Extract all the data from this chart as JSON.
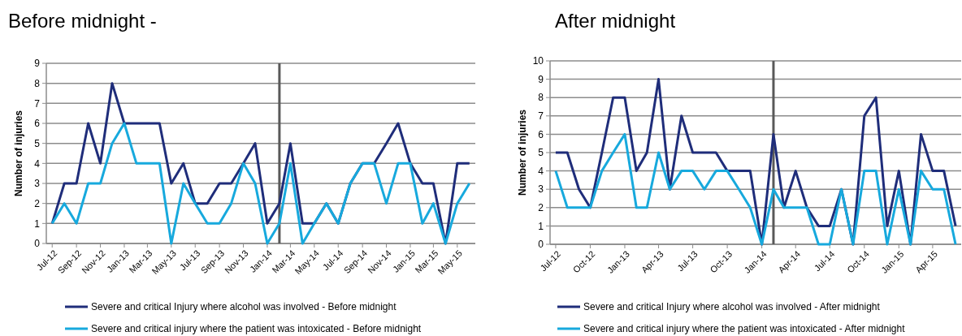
{
  "chart_data": [
    {
      "type": "line",
      "title": "Before midnight -",
      "ylabel": "Number of injuries",
      "x": [
        "2012-07",
        "2012-08",
        "2012-09",
        "2012-10",
        "2012-11",
        "2012-12",
        "2013-01",
        "2013-02",
        "2013-03",
        "2013-04",
        "2013-05",
        "2013-06",
        "2013-07",
        "2013-08",
        "2013-09",
        "2013-10",
        "2013-11",
        "2013-12",
        "2014-01",
        "2014-02",
        "2014-03",
        "2014-04",
        "2014-05",
        "2014-06",
        "2014-07",
        "2014-08",
        "2014-09",
        "2014-10",
        "2014-11",
        "2014-12",
        "2015-01",
        "2015-02",
        "2015-03",
        "2015-04",
        "2015-05",
        "2015-06"
      ],
      "series": [
        {
          "name": "Severe and critical Injury where alcohol was involved - Before midnight",
          "color": "#1f2d7a",
          "values": [
            1,
            3,
            3,
            6,
            4,
            8,
            6,
            6,
            6,
            6,
            3,
            4,
            2,
            2,
            3,
            3,
            4,
            5,
            1,
            2,
            5,
            1,
            1,
            2,
            1,
            3,
            4,
            4,
            5,
            6,
            4,
            3,
            3,
            0,
            4,
            4
          ]
        },
        {
          "name": "Severe and critical injury where the patient was intoxicated - Before midnight",
          "color": "#17a9dd",
          "values": [
            1,
            2,
            1,
            3,
            3,
            5,
            6,
            4,
            4,
            4,
            0,
            3,
            2,
            1,
            1,
            2,
            4,
            3,
            0,
            1,
            4,
            0,
            1,
            2,
            1,
            3,
            4,
            4,
            2,
            4,
            4,
            1,
            2,
            0,
            2,
            3
          ]
        }
      ],
      "xlim": [
        "2012-06-16",
        "2015-06-16"
      ],
      "xticks": [
        {
          "value": "2012-07",
          "label": "Jul-12"
        },
        {
          "value": "2012-09",
          "label": "Sep-12"
        },
        {
          "value": "2012-11",
          "label": "Nov-12"
        },
        {
          "value": "2013-01",
          "label": "Jan-13"
        },
        {
          "value": "2013-03",
          "label": "Mar-13"
        },
        {
          "value": "2013-05",
          "label": "May-13"
        },
        {
          "value": "2013-07",
          "label": "Jul-13"
        },
        {
          "value": "2013-09",
          "label": "Sep-13"
        },
        {
          "value": "2013-11",
          "label": "Nov-13"
        },
        {
          "value": "2014-01",
          "label": "Jan-14"
        },
        {
          "value": "2014-03",
          "label": "Mar-14"
        },
        {
          "value": "2014-05",
          "label": "May-14"
        },
        {
          "value": "2014-07",
          "label": "Jul-14"
        },
        {
          "value": "2014-09",
          "label": "Sep-14"
        },
        {
          "value": "2014-11",
          "label": "Nov-14"
        },
        {
          "value": "2015-01",
          "label": "Jan-15"
        },
        {
          "value": "2015-03",
          "label": "Mar-15"
        },
        {
          "value": "2015-05",
          "label": "May-15"
        }
      ],
      "ylim": [
        0,
        9
      ],
      "yticks": [
        0,
        1,
        2,
        3,
        4,
        5,
        6,
        7,
        8,
        9
      ],
      "grid": "y",
      "legend": "bottom",
      "ref_lines": [
        {
          "axis": "x",
          "value": "2014-02",
          "color": "#595959"
        }
      ]
    },
    {
      "type": "line",
      "title": "After midnight",
      "ylabel": "Number of injuries",
      "x": [
        "2012-07",
        "2012-08",
        "2012-09",
        "2012-10",
        "2012-11",
        "2012-12",
        "2013-01",
        "2013-02",
        "2013-03",
        "2013-04",
        "2013-05",
        "2013-06",
        "2013-07",
        "2013-08",
        "2013-09",
        "2013-10",
        "2013-11",
        "2013-12",
        "2014-01",
        "2014-02",
        "2014-03",
        "2014-04",
        "2014-05",
        "2014-06",
        "2014-07",
        "2014-08",
        "2014-09",
        "2014-10",
        "2014-11",
        "2014-12",
        "2015-01",
        "2015-02",
        "2015-03",
        "2015-04",
        "2015-05",
        "2015-06"
      ],
      "series": [
        {
          "name": "Severe and critical Injury where alcohol was involved - After midnight",
          "color": "#1f2d7a",
          "values": [
            5,
            5,
            3,
            2,
            5,
            8,
            8,
            4,
            5,
            9,
            3,
            7,
            5,
            5,
            5,
            4,
            4,
            4,
            0,
            6,
            2,
            4,
            2,
            1,
            1,
            3,
            0,
            7,
            8,
            1,
            4,
            0,
            6,
            4,
            4,
            1
          ]
        },
        {
          "name": "Severe and critical injury where the patient was intoxicated - After midnight",
          "color": "#17a9dd",
          "values": [
            4,
            2,
            2,
            2,
            4,
            5,
            6,
            2,
            2,
            5,
            3,
            4,
            4,
            3,
            4,
            4,
            3,
            2,
            0,
            3,
            2,
            2,
            2,
            0,
            0,
            3,
            0,
            4,
            4,
            0,
            3,
            0,
            4,
            3,
            3,
            0
          ]
        }
      ],
      "xlim": [
        "2012-06-16",
        "2015-06-16"
      ],
      "xticks": [
        {
          "value": "2012-07",
          "label": "Jul-12"
        },
        {
          "value": "2012-10",
          "label": "Oct-12"
        },
        {
          "value": "2013-01",
          "label": "Jan-13"
        },
        {
          "value": "2013-04",
          "label": "Apr-13"
        },
        {
          "value": "2013-07",
          "label": "Jul-13"
        },
        {
          "value": "2013-10",
          "label": "Oct-13"
        },
        {
          "value": "2014-01",
          "label": "Jan-14"
        },
        {
          "value": "2014-04",
          "label": "Apr-14"
        },
        {
          "value": "2014-07",
          "label": "Jul-14"
        },
        {
          "value": "2014-10",
          "label": "Oct-14"
        },
        {
          "value": "2015-01",
          "label": "Jan-15"
        },
        {
          "value": "2015-04",
          "label": "Apr-15"
        }
      ],
      "ylim": [
        0,
        10
      ],
      "yticks": [
        0,
        1,
        2,
        3,
        4,
        5,
        6,
        7,
        8,
        9,
        10
      ],
      "grid": "y",
      "legend": "bottom",
      "ref_lines": [
        {
          "axis": "x",
          "value": "2014-02",
          "color": "#595959"
        }
      ]
    }
  ]
}
